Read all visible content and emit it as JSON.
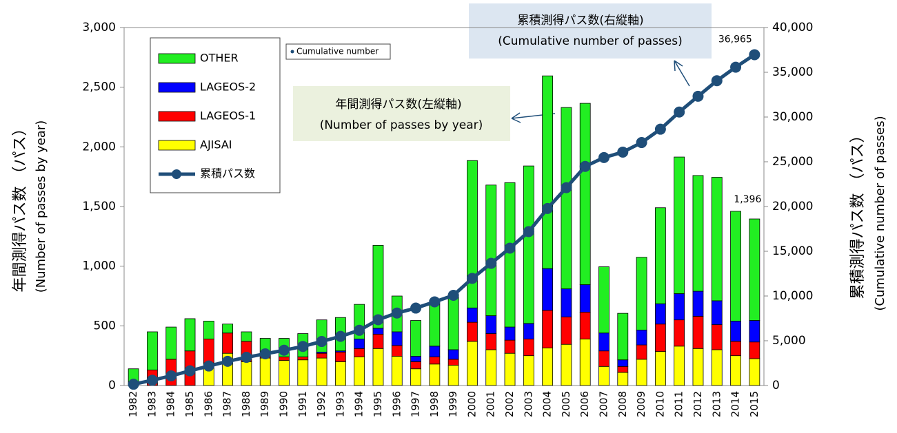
{
  "chart_data": {
    "type": "stacked-bar-line",
    "categories": [
      "1982",
      "1983",
      "1984",
      "1985",
      "1986",
      "1987",
      "1988",
      "1989",
      "1990",
      "1991",
      "1992",
      "1993",
      "1994",
      "1995",
      "1996",
      "1997",
      "1998",
      "1999",
      "2000",
      "2001",
      "2002",
      "2003",
      "2004",
      "2005",
      "2006",
      "2007",
      "2008",
      "2009",
      "2010",
      "2011",
      "2012",
      "2013",
      "2014",
      "2015"
    ],
    "series": [
      {
        "name": "AJISAI",
        "color": "#ffff00",
        "values": [
          0,
          0,
          0,
          0,
          190,
          270,
          200,
          230,
          210,
          215,
          230,
          200,
          240,
          310,
          245,
          140,
          180,
          170,
          370,
          300,
          270,
          250,
          315,
          345,
          390,
          160,
          110,
          220,
          285,
          330,
          310,
          300,
          250,
          225
        ]
      },
      {
        "name": "LAGEOS-1",
        "color": "#ff0000",
        "values": [
          0,
          130,
          220,
          290,
          200,
          170,
          170,
          20,
          30,
          25,
          40,
          80,
          70,
          120,
          90,
          60,
          60,
          50,
          160,
          135,
          110,
          140,
          315,
          230,
          225,
          130,
          50,
          120,
          230,
          220,
          270,
          210,
          120,
          140
        ]
      },
      {
        "name": "LAGEOS-2",
        "color": "#0000ff",
        "values": [
          0,
          0,
          0,
          0,
          0,
          0,
          0,
          0,
          0,
          0,
          10,
          10,
          80,
          50,
          115,
          45,
          90,
          80,
          120,
          150,
          110,
          130,
          350,
          235,
          230,
          150,
          55,
          125,
          170,
          220,
          210,
          200,
          170,
          180
        ]
      },
      {
        "name": "OTHER",
        "color": "#22ee22",
        "values": [
          140,
          320,
          270,
          270,
          150,
          75,
          80,
          145,
          155,
          195,
          270,
          280,
          290,
          695,
          300,
          300,
          385,
          460,
          1235,
          1095,
          1210,
          1320,
          1615,
          1520,
          1520,
          555,
          390,
          610,
          805,
          1145,
          970,
          1035,
          920,
          851
        ]
      },
      {
        "name": "累積パス数",
        "color": "#1f4e79",
        "axis": "y2",
        "kind": "line",
        "values": [
          140,
          590,
          1080,
          1640,
          2180,
          2700,
          3150,
          3540,
          3940,
          4370,
          4920,
          5490,
          6170,
          7350,
          8100,
          8650,
          9350,
          10080,
          11970,
          13650,
          15350,
          17190,
          19780,
          22110,
          24480,
          25470,
          26080,
          27150,
          28640,
          30560,
          32320,
          34060,
          35570,
          36965
        ],
        "value_labels": [
          null,
          null,
          null,
          null,
          null,
          null,
          null,
          null,
          null,
          null,
          null,
          null,
          null,
          null,
          null,
          null,
          null,
          null,
          null,
          null,
          null,
          null,
          null,
          null,
          null,
          null,
          null,
          null,
          null,
          null,
          null,
          null,
          null,
          "36,965"
        ]
      }
    ],
    "ylim": [
      0,
      3000
    ],
    "yticks": [
      0,
      {
        "value": 500,
        "label": "500"
      },
      {
        "value": 1000,
        "label": "1,000"
      },
      {
        "value": 1500,
        "label": "1,500"
      },
      {
        "value": 2000,
        "label": "2,000"
      },
      {
        "value": 2500,
        "label": "2,500"
      },
      {
        "value": 3000,
        "label": "3,000"
      }
    ],
    "y2lim": [
      0,
      40000
    ],
    "y2ticks": [
      0,
      {
        "value": 5000,
        "label": "5,000"
      },
      {
        "value": 10000,
        "label": "10,000"
      },
      {
        "value": 15000,
        "label": "15,000"
      },
      {
        "value": 20000,
        "label": "20,000"
      },
      {
        "value": 25000,
        "label": "25,000"
      },
      {
        "value": 30000,
        "label": "30,000"
      },
      {
        "value": 35000,
        "label": "35,000"
      },
      {
        "value": 40000,
        "label": "40,000"
      }
    ],
    "ylabel": [
      "年間測得パス数 （パス）",
      "(Number of passes by year)"
    ],
    "y2label": [
      "累積測得パス数 （パス）",
      "(Cumulative number of passes)"
    ],
    "legend_extra": "Cumulative number",
    "annotations": {
      "total_2015": "1,396",
      "cumulative_box": [
        "累積測得パス数(右縦軸)",
        "(Cumulative number of passes)"
      ],
      "annual_box": [
        "年間測得パス数(左縦軸)",
        "(Number of passes by year)"
      ]
    }
  }
}
